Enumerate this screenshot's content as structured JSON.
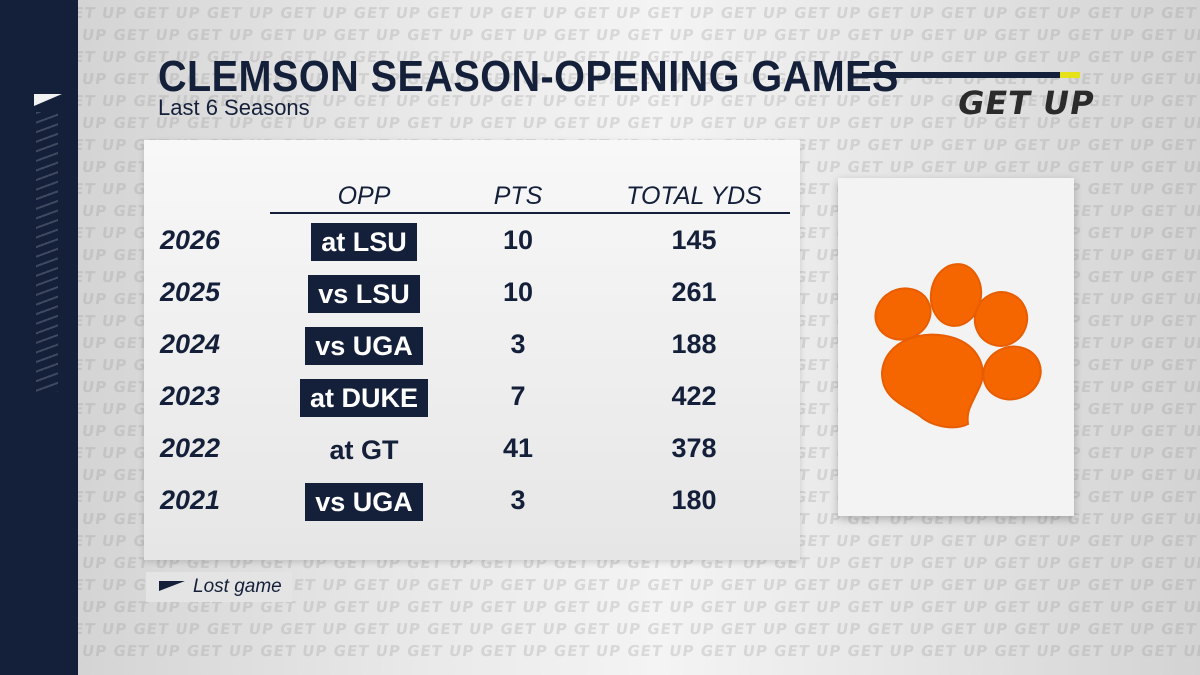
{
  "title": "CLEMSON SEASON-OPENING GAMES",
  "subtitle": "Last 6 Seasons",
  "brand": "GET UP",
  "watermark_text": "GET UP GET UP GET UP GET UP GET UP GET UP GET UP GET UP GET UP GET UP GET UP GET UP GET UP GET UP GET UP GET UP GET UP GET UP GET UP GET UP",
  "colors": {
    "navy": "#14203a",
    "accent_yellow": "#e6e21a",
    "clemson_orange": "#f56600"
  },
  "table": {
    "headers": {
      "opp": "OPP",
      "pts": "PTS",
      "yds": "TOTAL YDS"
    },
    "rows": [
      {
        "year": "2026",
        "opp": "at LSU",
        "pts": "10",
        "yds": "145",
        "lost": true
      },
      {
        "year": "2025",
        "opp": "vs LSU",
        "pts": "10",
        "yds": "261",
        "lost": true
      },
      {
        "year": "2024",
        "opp": "vs UGA",
        "pts": "3",
        "yds": "188",
        "lost": true
      },
      {
        "year": "2023",
        "opp": "at DUKE",
        "pts": "7",
        "yds": "422",
        "lost": true
      },
      {
        "year": "2022",
        "opp": "at GT",
        "pts": "41",
        "yds": "378",
        "lost": false
      },
      {
        "year": "2021",
        "opp": "vs UGA",
        "pts": "3",
        "yds": "180",
        "lost": true
      }
    ]
  },
  "logo_icon": "tiger-paw-icon",
  "legend": {
    "label": "Lost game"
  }
}
